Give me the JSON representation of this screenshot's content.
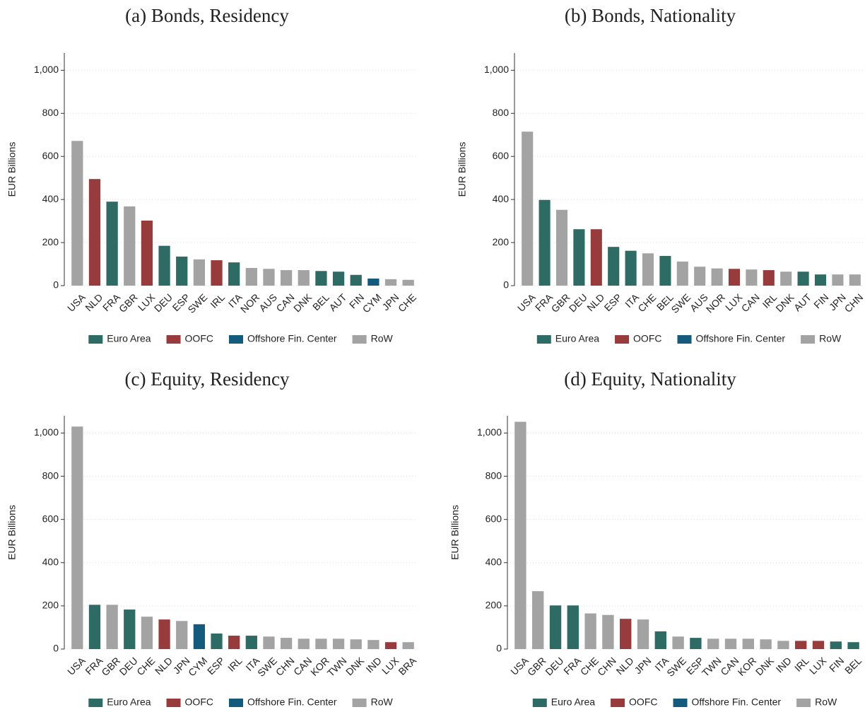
{
  "chart_data": [
    {
      "type": "bar",
      "title": "(a) Bonds, Residency",
      "ylabel": "EUR Billions",
      "ylim": [
        0,
        1080
      ],
      "yticks": [
        0,
        200,
        400,
        600,
        800,
        {
          "value": 1000,
          "label": "1,000"
        }
      ],
      "grid": true,
      "series": [
        {
          "name": "Euro Area",
          "color": "#2f6b65"
        },
        {
          "name": "OOFC",
          "color": "#973b3d"
        },
        {
          "name": "Offshore Fin. Center",
          "color": "#135a7d"
        },
        {
          "name": "RoW",
          "color": "#a3a3a3"
        }
      ],
      "categories": [
        "USA",
        "NLD",
        "FRA",
        "GBR",
        "LUX",
        "DEU",
        "ESP",
        "SWE",
        "IRL",
        "ITA",
        "NOR",
        "AUS",
        "CAN",
        "DNK",
        "BEL",
        "AUT",
        "FIN",
        "CYM",
        "JPN",
        "CHE"
      ],
      "values": [
        672,
        495,
        390,
        368,
        302,
        185,
        135,
        122,
        118,
        108,
        82,
        78,
        72,
        72,
        68,
        65,
        50,
        33,
        30,
        27
      ],
      "groups": [
        "RoW",
        "OOFC",
        "Euro Area",
        "RoW",
        "OOFC",
        "Euro Area",
        "Euro Area",
        "RoW",
        "OOFC",
        "Euro Area",
        "RoW",
        "RoW",
        "RoW",
        "RoW",
        "Euro Area",
        "Euro Area",
        "Euro Area",
        "Offshore Fin. Center",
        "RoW",
        "RoW"
      ]
    },
    {
      "type": "bar",
      "title": "(b) Bonds, Nationality",
      "ylabel": "EUR Billions",
      "ylim": [
        0,
        1080
      ],
      "yticks": [
        0,
        200,
        400,
        600,
        800,
        {
          "value": 1000,
          "label": "1,000"
        }
      ],
      "grid": true,
      "series": [
        {
          "name": "Euro Area",
          "color": "#2f6b65"
        },
        {
          "name": "OOFC",
          "color": "#973b3d"
        },
        {
          "name": "Offshore Fin. Center",
          "color": "#135a7d"
        },
        {
          "name": "RoW",
          "color": "#a3a3a3"
        }
      ],
      "categories": [
        "USA",
        "FRA",
        "GBR",
        "DEU",
        "NLD",
        "ESP",
        "ITA",
        "CHE",
        "BEL",
        "SWE",
        "AUS",
        "NOR",
        "LUX",
        "CAN",
        "IRL",
        "DNK",
        "AUT",
        "FIN",
        "JPN",
        "CHN"
      ],
      "values": [
        715,
        398,
        352,
        262,
        262,
        180,
        162,
        150,
        138,
        112,
        88,
        80,
        78,
        75,
        72,
        65,
        65,
        52,
        52,
        52
      ],
      "groups": [
        "RoW",
        "Euro Area",
        "RoW",
        "Euro Area",
        "OOFC",
        "Euro Area",
        "Euro Area",
        "RoW",
        "Euro Area",
        "RoW",
        "RoW",
        "RoW",
        "OOFC",
        "RoW",
        "OOFC",
        "RoW",
        "Euro Area",
        "Euro Area",
        "RoW",
        "RoW"
      ]
    },
    {
      "type": "bar",
      "title": "(c) Equity, Residency",
      "ylabel": "EUR Billions",
      "ylim": [
        0,
        1080
      ],
      "yticks": [
        0,
        200,
        400,
        600,
        800,
        {
          "value": 1000,
          "label": "1,000"
        }
      ],
      "grid": true,
      "series": [
        {
          "name": "Euro Area",
          "color": "#2f6b65"
        },
        {
          "name": "OOFC",
          "color": "#973b3d"
        },
        {
          "name": "Offshore Fin. Center",
          "color": "#135a7d"
        },
        {
          "name": "RoW",
          "color": "#a3a3a3"
        }
      ],
      "categories": [
        "USA",
        "FRA",
        "GBR",
        "DEU",
        "CHE",
        "NLD",
        "JPN",
        "CYM",
        "ESP",
        "IRL",
        "ITA",
        "SWE",
        "CHN",
        "CAN",
        "KOR",
        "TWN",
        "DNK",
        "IND",
        "LUX",
        "BRA"
      ],
      "values": [
        1030,
        205,
        205,
        183,
        150,
        137,
        130,
        115,
        72,
        62,
        62,
        58,
        52,
        48,
        48,
        48,
        45,
        42,
        32,
        32
      ],
      "groups": [
        "RoW",
        "Euro Area",
        "RoW",
        "Euro Area",
        "RoW",
        "OOFC",
        "RoW",
        "Offshore Fin. Center",
        "Euro Area",
        "OOFC",
        "Euro Area",
        "RoW",
        "RoW",
        "RoW",
        "RoW",
        "RoW",
        "RoW",
        "RoW",
        "OOFC",
        "RoW"
      ]
    },
    {
      "type": "bar",
      "title": "(d) Equity, Nationality",
      "ylabel": "EUR Billions",
      "ylim": [
        0,
        1080
      ],
      "yticks": [
        0,
        200,
        400,
        600,
        800,
        {
          "value": 1000,
          "label": "1,000"
        }
      ],
      "grid": true,
      "series": [
        {
          "name": "Euro Area",
          "color": "#2f6b65"
        },
        {
          "name": "OOFC",
          "color": "#973b3d"
        },
        {
          "name": "Offshore Fin. Center",
          "color": "#135a7d"
        },
        {
          "name": "RoW",
          "color": "#a3a3a3"
        }
      ],
      "categories": [
        "USA",
        "GBR",
        "DEU",
        "FRA",
        "CHE",
        "CHN",
        "NLD",
        "JPN",
        "ITA",
        "SWE",
        "ESP",
        "TWN",
        "CAN",
        "KOR",
        "DNK",
        "IND",
        "IRL",
        "LUX",
        "FIN",
        "BEL"
      ],
      "values": [
        1052,
        268,
        202,
        202,
        165,
        158,
        140,
        137,
        82,
        58,
        52,
        48,
        48,
        48,
        45,
        38,
        38,
        38,
        35,
        32
      ],
      "groups": [
        "RoW",
        "RoW",
        "Euro Area",
        "Euro Area",
        "RoW",
        "RoW",
        "OOFC",
        "RoW",
        "Euro Area",
        "RoW",
        "Euro Area",
        "RoW",
        "RoW",
        "RoW",
        "RoW",
        "RoW",
        "OOFC",
        "OOFC",
        "Euro Area",
        "Euro Area"
      ]
    }
  ]
}
